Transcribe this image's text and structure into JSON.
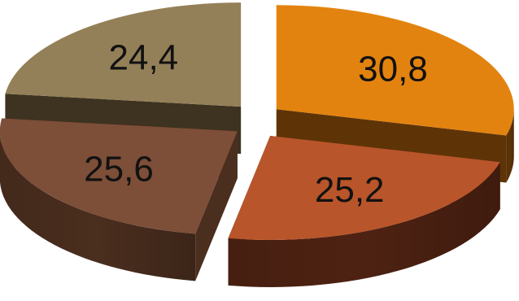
{
  "chart_data": {
    "type": "pie",
    "style": "3d-exploded",
    "labels": [
      "30,8",
      "25,2",
      "25,6",
      "24,4"
    ],
    "values": [
      30.8,
      25.2,
      25.6,
      24.4
    ],
    "colors": {
      "top": [
        "#E3830F",
        "#B9552A",
        "#7D4E38",
        "#948058"
      ],
      "side": [
        "#5E3407",
        "#4E2212",
        "#4A2E1E",
        "#3E3220"
      ]
    },
    "legend": false,
    "grid": false
  }
}
